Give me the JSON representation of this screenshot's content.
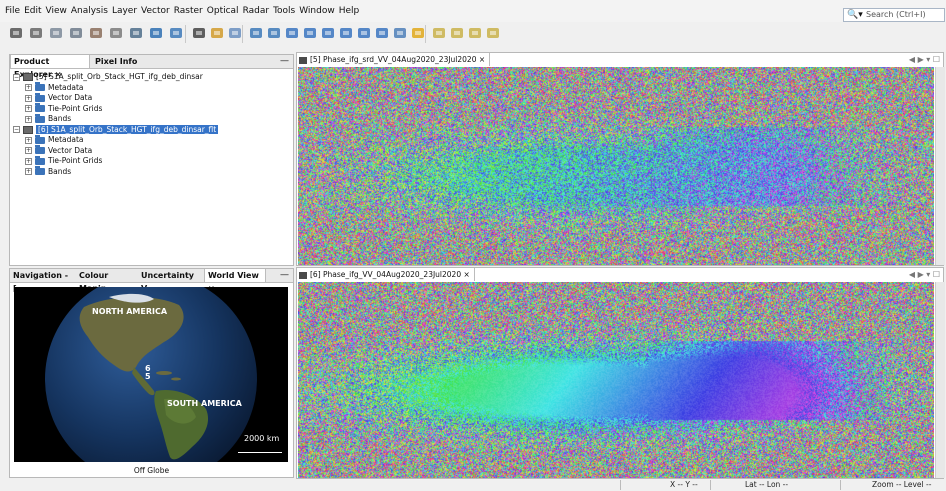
{
  "menu": [
    "File",
    "Edit",
    "View",
    "Analysis",
    "Layer",
    "Vector",
    "Raster",
    "Optical",
    "Radar",
    "Tools",
    "Window",
    "Help"
  ],
  "search": {
    "placeholder": "Search (Ctrl+I)"
  },
  "toolbar": {
    "icons": [
      "open-product-icon",
      "save-product-icon",
      "band-maths-icon",
      "graph-builder-icon",
      "collocation-icon",
      "gcp-icon",
      "globe-icon",
      "pin-icon",
      "gcp-tool-icon",
      "select-tool-icon",
      "pan-tool-icon",
      "zoom-tool-icon",
      "pin-placing-icon",
      "gcp-placing-icon",
      "line-draw-icon",
      "polyline-draw-icon",
      "rectangle-draw-icon",
      "polygon-draw-icon",
      "ellipse-draw-icon",
      "magic-wand-icon",
      "range-finder-icon",
      "measure-icon",
      "tile-evenly-icon",
      "tile-horizontal-icon",
      "tile-vertical-icon",
      "tile-single-icon"
    ]
  },
  "product_explorer": {
    "tabs": [
      "Product Explorer ×",
      "Pixel Info"
    ],
    "minimize": "—",
    "products": [
      {
        "label": "[5] S1A_split_Orb_Stack_HGT_ifg_deb_dinsar",
        "children": [
          "Metadata",
          "Vector Data",
          "Tie-Point Grids",
          "Bands"
        ]
      },
      {
        "label": "[6] S1A_split_Orb_Stack_HGT_ifg_deb_dinsar_flt",
        "children": [
          "Metadata",
          "Vector Data",
          "Tie-Point Grids",
          "Bands"
        ]
      }
    ]
  },
  "navigation_panel": {
    "tabs": [
      "Navigation - [...",
      "Colour Manip...",
      "Uncertainty V...",
      "World View ×"
    ],
    "minimize": "—",
    "globe_labels": {
      "north_america": "NORTH AMERICA",
      "south_america": "SOUTH AMERICA",
      "marker_6": "6",
      "marker_5": "5"
    },
    "scale": "2000 km",
    "footer": "Off Globe"
  },
  "views": [
    {
      "tab": "[5] Phase_ifg_srd_VV_04Aug2020_23Jul2020 ×",
      "controls": "◀ ▶ ▾ ☐"
    },
    {
      "tab": "[6] Phase_ifg_VV_04Aug2020_23Jul2020 ×",
      "controls": "◀ ▶ ▾ ☐"
    }
  ],
  "statusbar": {
    "x": "X -- Y --",
    "latlon": "Lat -- Lon --",
    "zoom": "Zoom -- Level --"
  },
  "colors": {
    "selection": "#3573c8",
    "globe_bg": "#000000"
  }
}
